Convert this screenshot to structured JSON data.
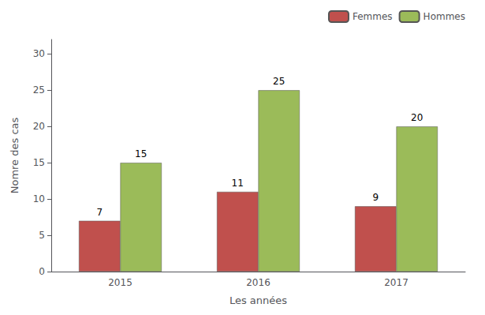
{
  "chart_data": {
    "type": "bar",
    "xlabel": "Les années",
    "ylabel": "Nomre des cas",
    "categories": [
      "2015",
      "2016",
      "2017"
    ],
    "series": [
      {
        "name": "Femmes",
        "color": "#C0504D",
        "values": [
          7,
          11,
          9
        ]
      },
      {
        "name": "Hommes",
        "color": "#9BBB59",
        "values": [
          15,
          25,
          20
        ]
      }
    ],
    "ylim": [
      0,
      32
    ],
    "yticks": [
      0,
      5,
      10,
      15,
      20,
      25,
      30
    ],
    "grid": false,
    "legend": "upper right",
    "data_labels": true
  }
}
